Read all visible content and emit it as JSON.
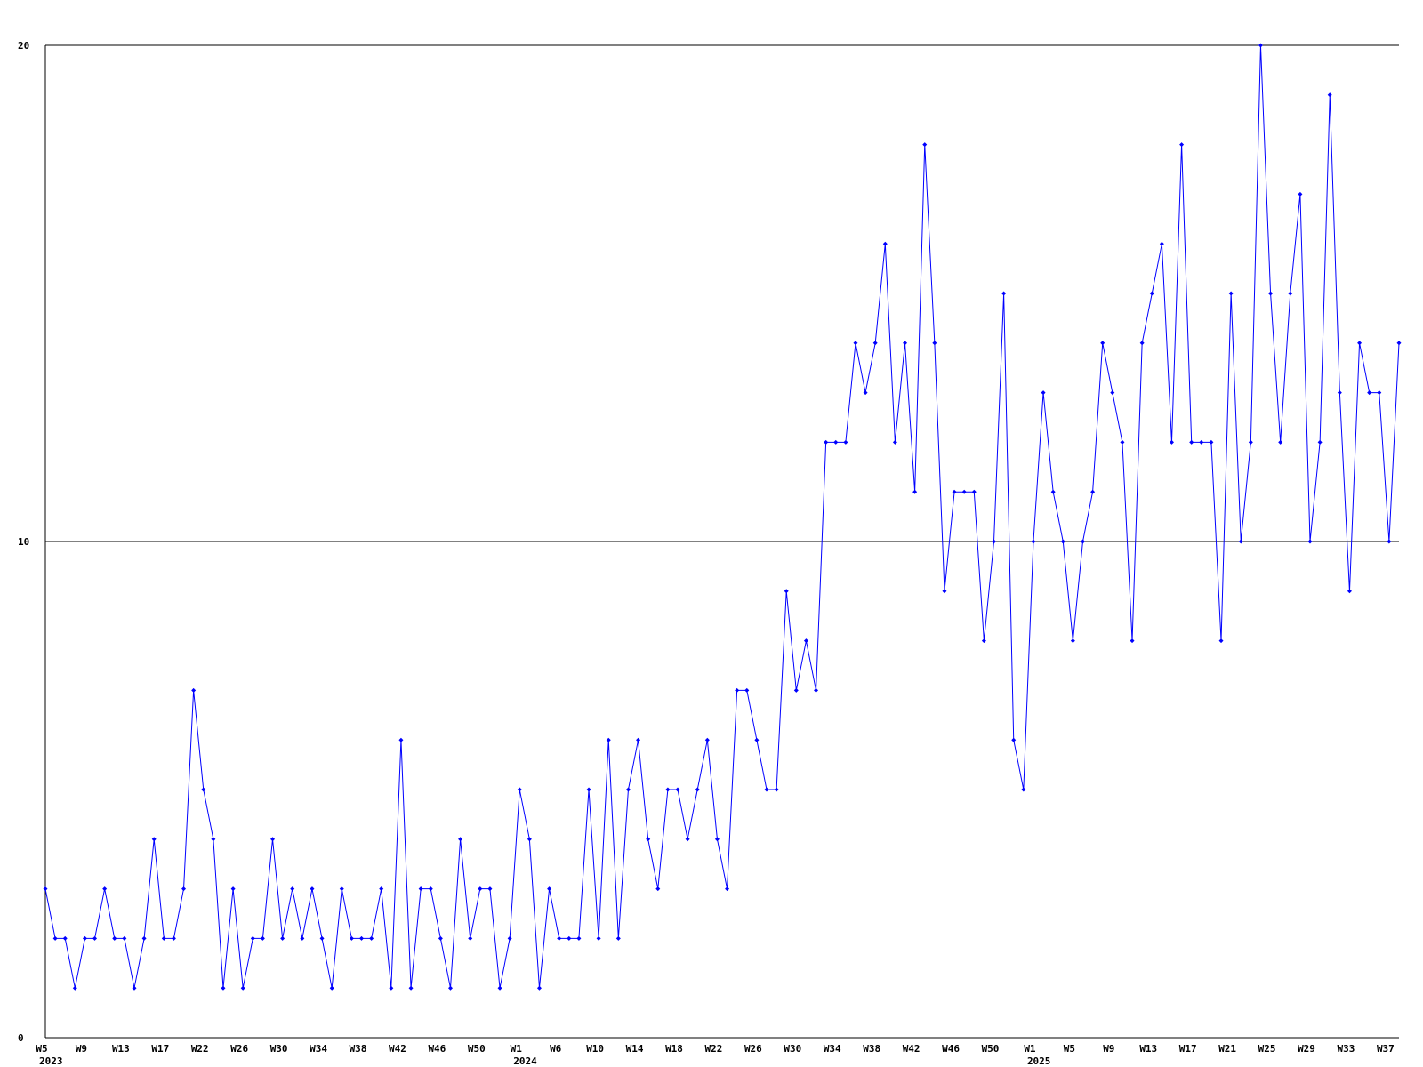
{
  "chart_data": {
    "type": "line",
    "color": "#0000ff",
    "ylim": [
      0,
      20
    ],
    "yticks": [
      0,
      10,
      20
    ],
    "grid": true,
    "categories": [
      "W5",
      null,
      null,
      null,
      "W9",
      null,
      null,
      null,
      "W13",
      null,
      null,
      null,
      "W17",
      null,
      null,
      null,
      "W22",
      null,
      null,
      null,
      "W26",
      null,
      null,
      null,
      "W30",
      null,
      null,
      null,
      "W34",
      null,
      null,
      null,
      "W38",
      null,
      null,
      null,
      "W42",
      null,
      null,
      null,
      "W46",
      null,
      null,
      null,
      "W50",
      null,
      null,
      null,
      "W1",
      null,
      null,
      null,
      "W6",
      null,
      null,
      null,
      "W10",
      null,
      null,
      null,
      "W14",
      null,
      null,
      null,
      "W18",
      null,
      null,
      null,
      "W22",
      null,
      null,
      null,
      "W26",
      null,
      null,
      null,
      "W30",
      null,
      null,
      null,
      "W34",
      null,
      null,
      null,
      "W38",
      null,
      null,
      null,
      "W42",
      null,
      null,
      null,
      "W46",
      null,
      null,
      null,
      "W50",
      null,
      null,
      null,
      "W1",
      null,
      null,
      null,
      "W5",
      null,
      null,
      null,
      "W9",
      null,
      null,
      null,
      "W13",
      null,
      null,
      null,
      "W17",
      null,
      null,
      null,
      "W21",
      null,
      null,
      null,
      "W25",
      null,
      null,
      null,
      "W29",
      null,
      null,
      null,
      "W33",
      null,
      null,
      null,
      "W37",
      null
    ],
    "year_labels": [
      {
        "value": 0,
        "label": "2023"
      },
      {
        "value": 48,
        "label": "2024"
      },
      {
        "value": 100,
        "label": "2025"
      }
    ],
    "values": [
      3,
      2,
      2,
      1,
      2,
      2,
      3,
      2,
      2,
      1,
      2,
      4,
      2,
      2,
      3,
      7,
      5,
      4,
      1,
      3,
      1,
      2,
      2,
      4,
      2,
      3,
      2,
      3,
      2,
      1,
      3,
      2,
      2,
      2,
      3,
      1,
      6,
      1,
      3,
      3,
      2,
      1,
      4,
      2,
      3,
      3,
      1,
      2,
      5,
      4,
      1,
      3,
      2,
      2,
      2,
      5,
      2,
      6,
      2,
      5,
      6,
      4,
      3,
      5,
      5,
      4,
      5,
      6,
      4,
      3,
      7,
      7,
      6,
      5,
      5,
      9,
      7,
      8,
      7,
      12,
      12,
      12,
      14,
      13,
      14,
      16,
      12,
      14,
      11,
      18,
      14,
      9,
      11,
      11,
      11,
      8,
      10,
      15,
      6,
      5,
      10,
      13,
      11,
      10,
      8,
      10,
      11,
      14,
      13,
      12,
      8,
      14,
      15,
      16,
      12,
      18,
      12,
      12,
      12,
      8,
      15,
      10,
      12,
      20,
      15,
      12,
      15,
      17,
      10,
      12,
      19,
      13,
      9,
      14,
      13,
      13,
      10,
      14
    ]
  }
}
